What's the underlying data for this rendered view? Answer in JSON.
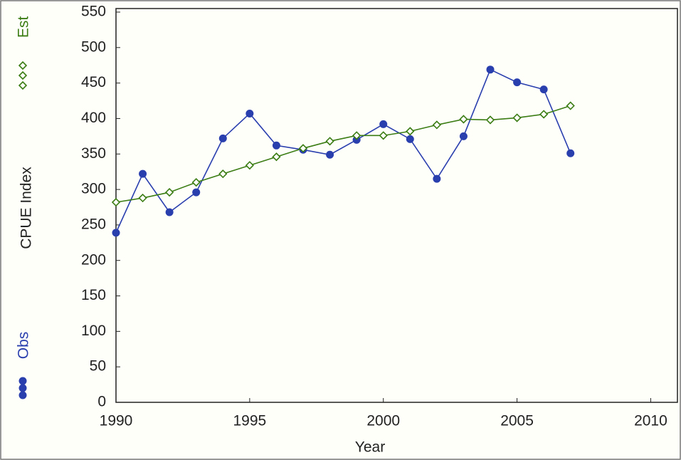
{
  "chart_data": {
    "type": "line",
    "x_label": "Year",
    "y_label": "CPUE Index",
    "x": [
      1990,
      1991,
      1992,
      1993,
      1994,
      1995,
      1996,
      1997,
      1998,
      1999,
      2000,
      2001,
      2002,
      2003,
      2004,
      2005,
      2006,
      2007
    ],
    "series": [
      {
        "name": "Obs",
        "color": "#2a3fae",
        "marker": "circle",
        "values": [
          239,
          322,
          268,
          296,
          372,
          407,
          362,
          356,
          349,
          370,
          392,
          371,
          315,
          375,
          469,
          451,
          441,
          351
        ]
      },
      {
        "name": "Est",
        "color": "#3b7d14",
        "marker": "diamond",
        "values": [
          282,
          288,
          296,
          310,
          322,
          334,
          346,
          358,
          368,
          376,
          376,
          382,
          391,
          399,
          398,
          401,
          406,
          418
        ]
      }
    ],
    "xlim": [
      1990,
      2011
    ],
    "xticks": [
      1990,
      1995,
      2000,
      2005,
      2010
    ],
    "ylim": [
      0,
      555
    ],
    "yticks": [
      0,
      50,
      100,
      150,
      200,
      250,
      300,
      350,
      400,
      450,
      500,
      550
    ],
    "grid": false
  }
}
